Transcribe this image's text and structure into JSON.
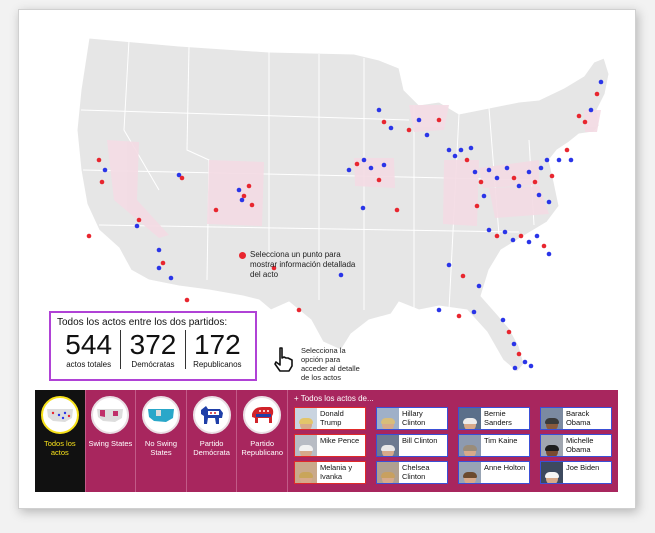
{
  "hint": {
    "text": "Selecciona un punto para mostrar información detallada del acto"
  },
  "stats": {
    "title": "Todos los actos entre los dos partidos:",
    "items": [
      {
        "value": "544",
        "label": "actos totales"
      },
      {
        "value": "372",
        "label": "Demócratas"
      },
      {
        "value": "172",
        "label": "Republicanos"
      }
    ]
  },
  "pointer": {
    "text": "Selecciona la opción para acceder al detalle de los actos"
  },
  "options": [
    {
      "label": "Todos los actos",
      "icon": "us-map-dots-icon",
      "selected": true
    },
    {
      "label": "Swing States",
      "icon": "us-map-red-icon",
      "selected": false
    },
    {
      "label": "No Swing States",
      "icon": "us-map-blue-icon",
      "selected": false
    },
    {
      "label": "Partido Demócrata",
      "icon": "democrat-donkey-icon",
      "selected": false
    },
    {
      "label": "Partido Republicano",
      "icon": "republican-elephant-icon",
      "selected": false
    }
  ],
  "people_header": "+ Todos los actos de...",
  "people": [
    {
      "name": "Donald Trump",
      "party": "rep"
    },
    {
      "name": "Hillary Clinton",
      "party": "dem"
    },
    {
      "name": "Bernie Sanders",
      "party": "dem"
    },
    {
      "name": "Barack Obama",
      "party": "dem"
    },
    {
      "name": "Mike Pence",
      "party": "rep"
    },
    {
      "name": "Bill Clinton",
      "party": "dem"
    },
    {
      "name": "Tim Kaine",
      "party": "dem"
    },
    {
      "name": "Michelle Obama",
      "party": "dem"
    },
    {
      "name": "Melania y Ivanka",
      "party": "rep"
    },
    {
      "name": "Chelsea Clinton",
      "party": "dem"
    },
    {
      "name": "Anne Holton",
      "party": "dem"
    },
    {
      "name": "Joe Biden",
      "party": "dem"
    }
  ],
  "colors": {
    "democrat": "#2a35e8",
    "republican": "#e8262f",
    "panel": "#a8265e",
    "selected": "#f7e11a",
    "stats_border": "#b042d6"
  }
}
